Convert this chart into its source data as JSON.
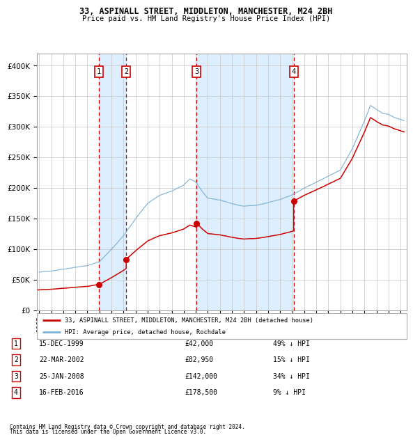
{
  "title1": "33, ASPINALL STREET, MIDDLETON, MANCHESTER, M24 2BH",
  "title2": "Price paid vs. HM Land Registry's House Price Index (HPI)",
  "legend_red": "33, ASPINALL STREET, MIDDLETON, MANCHESTER, M24 2BH (detached house)",
  "legend_blue": "HPI: Average price, detached house, Rochdale",
  "footnote1": "Contains HM Land Registry data © Crown copyright and database right 2024.",
  "footnote2": "This data is licensed under the Open Government Licence v3.0.",
  "transactions": [
    {
      "num": 1,
      "date": "15-DEC-1999",
      "price": 42000,
      "pct": "49% ↓ HPI",
      "date_val": 1999.958
    },
    {
      "num": 2,
      "date": "22-MAR-2002",
      "price": 82950,
      "pct": "15% ↓ HPI",
      "date_val": 2002.22
    },
    {
      "num": 3,
      "date": "25-JAN-2008",
      "price": 142000,
      "pct": "34% ↓ HPI",
      "date_val": 2008.07
    },
    {
      "num": 4,
      "date": "16-FEB-2016",
      "price": 178500,
      "pct": "9% ↓ HPI",
      "date_val": 2016.12
    }
  ],
  "ylim": [
    0,
    420000
  ],
  "xlim": [
    1994.8,
    2025.5
  ],
  "red_color": "#cc0000",
  "blue_color": "#7ab0d4",
  "shade_color": "#ddeeff",
  "grid_color": "#cccccc",
  "background_color": "#ffffff",
  "hpi_base": [
    [
      1995.0,
      62000
    ],
    [
      1996.0,
      64000
    ],
    [
      1997.0,
      67000
    ],
    [
      1998.0,
      70000
    ],
    [
      1999.0,
      73000
    ],
    [
      2000.0,
      80000
    ],
    [
      2001.0,
      100000
    ],
    [
      2002.0,
      122000
    ],
    [
      2003.0,
      150000
    ],
    [
      2004.0,
      175000
    ],
    [
      2005.0,
      188000
    ],
    [
      2006.0,
      195000
    ],
    [
      2007.0,
      205000
    ],
    [
      2007.5,
      215000
    ],
    [
      2008.0,
      210000
    ],
    [
      2008.5,
      195000
    ],
    [
      2009.0,
      183000
    ],
    [
      2010.0,
      180000
    ],
    [
      2011.0,
      174000
    ],
    [
      2012.0,
      170000
    ],
    [
      2013.0,
      172000
    ],
    [
      2014.0,
      176000
    ],
    [
      2015.0,
      182000
    ],
    [
      2016.0,
      190000
    ],
    [
      2017.0,
      200000
    ],
    [
      2018.0,
      210000
    ],
    [
      2019.0,
      220000
    ],
    [
      2020.0,
      230000
    ],
    [
      2021.0,
      265000
    ],
    [
      2022.0,
      310000
    ],
    [
      2022.5,
      335000
    ],
    [
      2023.0,
      328000
    ],
    [
      2023.5,
      322000
    ],
    [
      2024.0,
      320000
    ],
    [
      2024.5,
      315000
    ],
    [
      2025.3,
      310000
    ]
  ]
}
